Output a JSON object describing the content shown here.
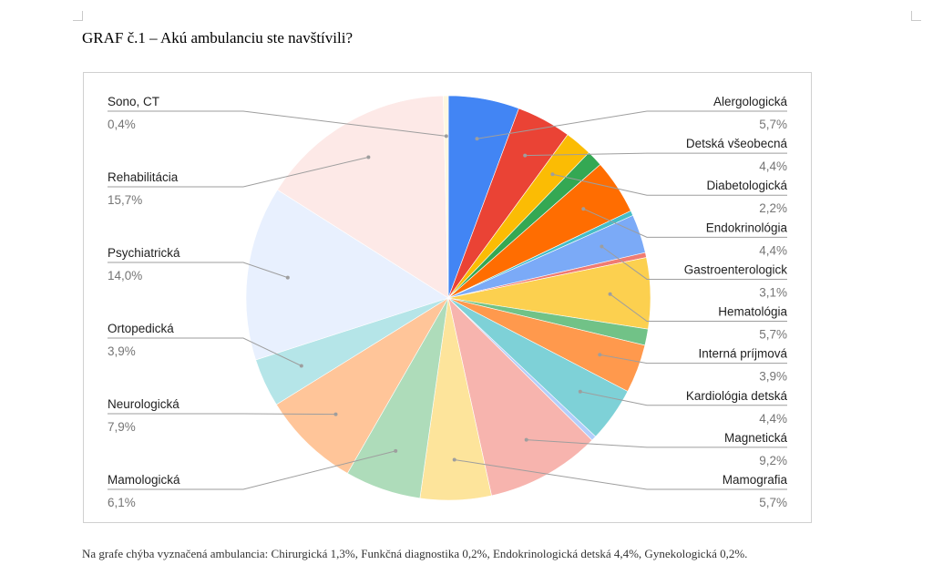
{
  "title": "GRAF č.1 – Akú ambulanciu ste navštívili?",
  "footnote": "Na grafe chýba vyznačená ambulancia: Chirurgická 1,3%, Funkčná diagnostika 0,2%, Endokrinologická detská 4,4%, Gynekologická  0,2%.",
  "chart_data": {
    "type": "pie",
    "start_angle_deg": 0,
    "direction": "clockwise",
    "slices": [
      {
        "name": "Alergologická",
        "value": 5.7,
        "label": "5,7%",
        "color": "#4285f4",
        "labeled": true,
        "side": "right"
      },
      {
        "name": "Detská všeobecná",
        "value": 4.4,
        "label": "4,4%",
        "color": "#ea4335",
        "labeled": true,
        "side": "right"
      },
      {
        "name": "Diabetologická",
        "value": 2.2,
        "label": "2,2%",
        "color": "#fbbc04",
        "labeled": true,
        "side": "right"
      },
      {
        "name": "",
        "value": 1.3,
        "color": "#34a853",
        "labeled": false
      },
      {
        "name": "Endokrinológia",
        "value": 4.4,
        "label": "4,4%",
        "color": "#ff6d01",
        "labeled": true,
        "side": "right"
      },
      {
        "name": "",
        "value": 0.4,
        "color": "#46bdc6",
        "labeled": false
      },
      {
        "name": "Gastroenterologick",
        "value": 3.1,
        "label": "3,1%",
        "color": "#7baaf7",
        "labeled": true,
        "side": "right"
      },
      {
        "name": "",
        "value": 0.4,
        "color": "#f07b72",
        "labeled": false
      },
      {
        "name": "Hematológia",
        "value": 5.7,
        "label": "5,7%",
        "color": "#fcd04f",
        "labeled": true,
        "side": "right"
      },
      {
        "name": "",
        "value": 1.3,
        "color": "#71c287",
        "labeled": false
      },
      {
        "name": "Interná príjmová",
        "value": 3.9,
        "label": "3,9%",
        "color": "#ff994d",
        "labeled": true,
        "side": "right"
      },
      {
        "name": "Kardiológia detská",
        "value": 4.4,
        "label": "4,4%",
        "color": "#7ed1d7",
        "labeled": true,
        "side": "right"
      },
      {
        "name": "",
        "value": 0.4,
        "color": "#b3cefb",
        "labeled": false
      },
      {
        "name": "Magnetická",
        "value": 9.2,
        "label": "9,2%",
        "color": "#f7b4ae",
        "labeled": true,
        "side": "right"
      },
      {
        "name": "Mamografia",
        "value": 5.7,
        "label": "5,7%",
        "color": "#fde49b",
        "labeled": true,
        "side": "right"
      },
      {
        "name": "Mamologická",
        "value": 6.1,
        "label": "6,1%",
        "color": "#aedcba",
        "labeled": true,
        "side": "left"
      },
      {
        "name": "Neurologická",
        "value": 7.9,
        "label": "7,9%",
        "color": "#ffc599",
        "labeled": true,
        "side": "left"
      },
      {
        "name": "Ortopedická",
        "value": 3.9,
        "label": "3,9%",
        "color": "#b5e5e8",
        "labeled": true,
        "side": "left"
      },
      {
        "name": "Psychiatrická",
        "value": 14.0,
        "label": "14,0%",
        "color": "#e8f0fe",
        "labeled": true,
        "side": "left"
      },
      {
        "name": "Rehabilitácia",
        "value": 15.7,
        "label": "15,7%",
        "color": "#fde9e7",
        "labeled": true,
        "side": "left"
      },
      {
        "name": "Sono, CT",
        "value": 0.4,
        "label": "0,4%",
        "color": "#fef7e0",
        "labeled": true,
        "side": "left"
      }
    ]
  }
}
